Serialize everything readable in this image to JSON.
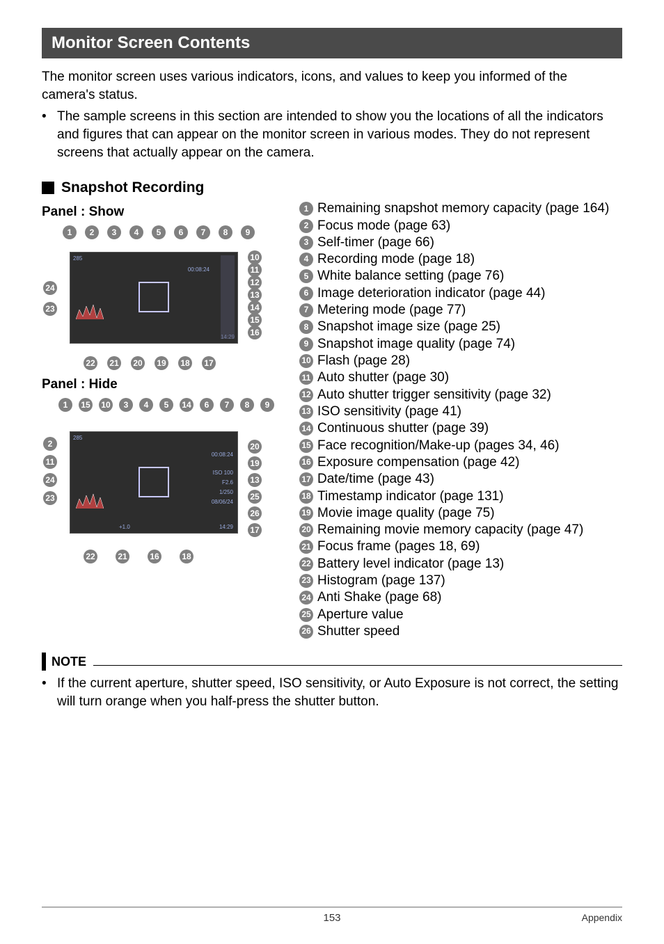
{
  "banner": "Monitor Screen Contents",
  "intro": "The monitor screen uses various indicators, icons, and values to keep you informed of the camera's status.",
  "intro_bullet": "The sample screens in this section are intended to show you the locations of all the indicators and figures that can appear on the monitor screen in various modes. They do not represent screens that actually appear on the camera.",
  "subhead": "Snapshot Recording",
  "panel_show": "Panel : Show",
  "panel_hide": "Panel : Hide",
  "legend": [
    {
      "n": "1",
      "t": "Remaining snapshot memory capacity (page 164)"
    },
    {
      "n": "2",
      "t": "Focus mode (page 63)"
    },
    {
      "n": "3",
      "t": "Self-timer (page 66)"
    },
    {
      "n": "4",
      "t": "Recording mode (page 18)"
    },
    {
      "n": "5",
      "t": "White balance setting (page 76)"
    },
    {
      "n": "6",
      "t": "Image deterioration indicator (page 44)"
    },
    {
      "n": "7",
      "t": "Metering mode (page 77)"
    },
    {
      "n": "8",
      "t": "Snapshot image size (page 25)"
    },
    {
      "n": "9",
      "t": "Snapshot image quality (page 74)"
    },
    {
      "n": "10",
      "t": "Flash (page 28)"
    },
    {
      "n": "11",
      "t": "Auto shutter (page 30)"
    },
    {
      "n": "12",
      "t": "Auto shutter trigger sensitivity (page 32)"
    },
    {
      "n": "13",
      "t": "ISO sensitivity (page 41)"
    },
    {
      "n": "14",
      "t": "Continuous shutter (page 39)"
    },
    {
      "n": "15",
      "t": "Face recognition/Make-up (pages 34, 46)"
    },
    {
      "n": "16",
      "t": "Exposure compensation (page 42)"
    },
    {
      "n": "17",
      "t": "Date/time (page 43)"
    },
    {
      "n": "18",
      "t": "Timestamp indicator (page 131)"
    },
    {
      "n": "19",
      "t": "Movie image quality (page 75)"
    },
    {
      "n": "20",
      "t": "Remaining movie memory capacity (page 47)"
    },
    {
      "n": "21",
      "t": "Focus frame (pages 18, 69)"
    },
    {
      "n": "22",
      "t": "Battery level indicator (page 13)"
    },
    {
      "n": "23",
      "t": "Histogram (page 137)"
    },
    {
      "n": "24",
      "t": "Anti Shake (page 68)"
    },
    {
      "n": "25",
      "t": "Aperture value"
    },
    {
      "n": "26",
      "t": "Shutter speed"
    }
  ],
  "note_label": "NOTE",
  "note_text": "If the current aperture, shutter speed, ISO sensitivity, or Auto Exposure is not correct, the setting will turn orange when you half-press the shutter button.",
  "footer_page": "153",
  "footer_section": "Appendix",
  "diagram1": {
    "top_nums": [
      "1",
      "2",
      "3",
      "4",
      "5",
      "6",
      "7",
      "8",
      "9"
    ],
    "right_nums": [
      "10",
      "11",
      "12",
      "13",
      "14",
      "15",
      "16"
    ],
    "left_nums": [
      "24",
      "23"
    ],
    "bottom_nums": [
      "22",
      "21",
      "20",
      "19",
      "18",
      "17"
    ],
    "osd": {
      "tl": "285",
      "tc": "00:08:24",
      "br": "14:29"
    }
  },
  "diagram2": {
    "top_nums": [
      "1",
      "15",
      "10",
      "3",
      "4",
      "5",
      "14",
      "6",
      "7",
      "8",
      "9"
    ],
    "right_nums": [
      "20",
      "19",
      "13",
      "25",
      "26",
      "17"
    ],
    "left_nums": [
      "2",
      "11",
      "24",
      "23"
    ],
    "bottom_nums": [
      "22",
      "21",
      "16",
      "18"
    ],
    "osd": {
      "tl": "285",
      "tc": "00:08:24",
      "iso": "ISO 100",
      "f": "F2.6",
      "sh": "1/250",
      "date": "08/06/24",
      "time": "14:29",
      "ev": "+1.0"
    }
  },
  "colors": {
    "banner_bg": "#4a4a4a",
    "banner_fg": "#ffffff",
    "circle_bg": "#808080",
    "circle_fg": "#ffffff",
    "screen_bg": "#2d2d2d",
    "rule": "#b0b0b0"
  }
}
